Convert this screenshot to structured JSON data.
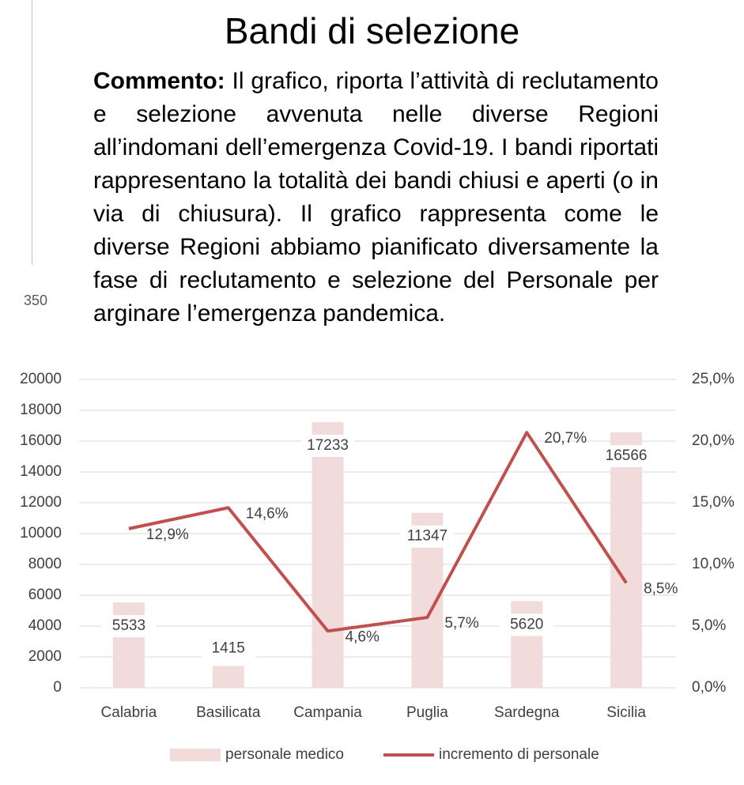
{
  "slide": {
    "title": "Bandi di selezione",
    "comment_label": "Commento:",
    "comment": "Il grafico, riporta l’attività di reclutamento e selezione avvenuta nelle diverse Regioni all’indomani dell’emergenza Covid-19. I bandi riportati rappresentano la totalità dei bandi chiusi e aperti (o in via di chiusura). Il grafico rappresenta come le diverse Regioni abbiamo pianificato diversamente la fase di reclutamento e selezione del Personale per arginare l’emergenza pandemica.",
    "side_label": "350"
  },
  "chart_data": {
    "type": "bar-line",
    "categories": [
      "Calabria",
      "Basilicata",
      "Campania",
      "Puglia",
      "Sardegna",
      "Sicilia"
    ],
    "series": [
      {
        "name": "personale medico",
        "type": "bar",
        "color": "#f2dcdb",
        "values": [
          5533,
          1415,
          17233,
          11347,
          5620,
          16566
        ]
      },
      {
        "name": "incremento di personale",
        "type": "line",
        "axis": "y2",
        "color": "#c0504d",
        "values": [
          12.9,
          14.6,
          4.6,
          5.7,
          20.7,
          8.5
        ],
        "value_labels": [
          "12,9%",
          "14,6%",
          "4,6%",
          "5,7%",
          "20,7%",
          "8,5%"
        ]
      }
    ],
    "ylim": [
      0,
      20000
    ],
    "yticks": [
      0,
      2000,
      4000,
      6000,
      8000,
      10000,
      12000,
      14000,
      16000,
      18000,
      20000
    ],
    "y2lim": [
      0,
      25
    ],
    "y2ticks": [
      {
        "value": 0,
        "label": "0,0%"
      },
      {
        "value": 5,
        "label": "5,0%"
      },
      {
        "value": 10,
        "label": "10,0%"
      },
      {
        "value": 15,
        "label": "15,0%"
      },
      {
        "value": 20,
        "label": "20,0%"
      },
      {
        "value": 25,
        "label": "25,0%"
      }
    ],
    "grid": true,
    "legend": "bottom"
  }
}
